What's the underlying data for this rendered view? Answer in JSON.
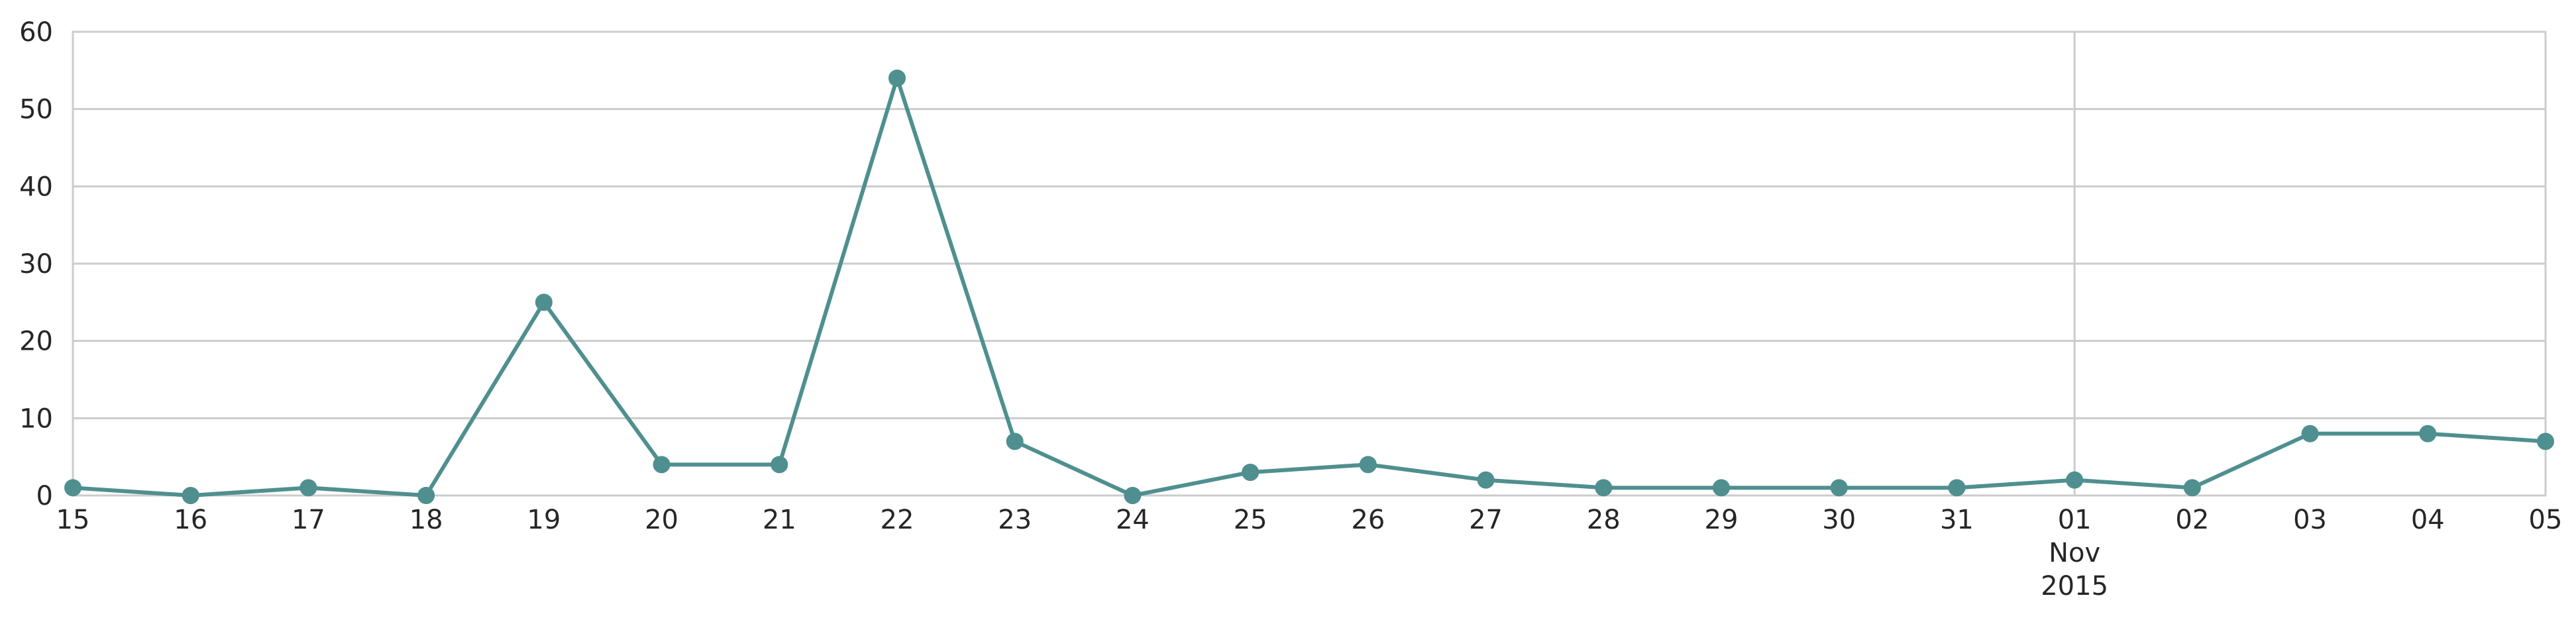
{
  "chart_data": {
    "type": "line",
    "title": "",
    "xlabel": "",
    "ylabel": "",
    "ylim": [
      0,
      60
    ],
    "yticks": [
      0,
      10,
      20,
      30,
      40,
      50,
      60
    ],
    "x": [
      "2015-10-15",
      "2015-10-16",
      "2015-10-17",
      "2015-10-18",
      "2015-10-19",
      "2015-10-20",
      "2015-10-21",
      "2015-10-22",
      "2015-10-23",
      "2015-10-24",
      "2015-10-25",
      "2015-10-26",
      "2015-10-27",
      "2015-10-28",
      "2015-10-29",
      "2015-10-30",
      "2015-10-31",
      "2015-11-01",
      "2015-11-02",
      "2015-11-03",
      "2015-11-04",
      "2015-11-05"
    ],
    "x_tick_labels": [
      "15",
      "16",
      "17",
      "18",
      "19",
      "20",
      "21",
      "22",
      "23",
      "24",
      "25",
      "26",
      "27",
      "28",
      "29",
      "30",
      "31",
      "01\nNov\n2015",
      "02",
      "03",
      "04",
      "05"
    ],
    "grid": "horizontal, plus vertical line at month boundary",
    "series": [
      {
        "values": [
          1,
          0,
          1,
          0,
          25,
          4,
          4,
          54,
          7,
          0,
          3,
          4,
          2,
          1,
          1,
          1,
          1,
          2,
          1,
          8,
          8,
          7
        ]
      }
    ],
    "colors": {
      "line": "#4f8f8f",
      "grid": "#cccccc",
      "text": "#262626"
    }
  }
}
